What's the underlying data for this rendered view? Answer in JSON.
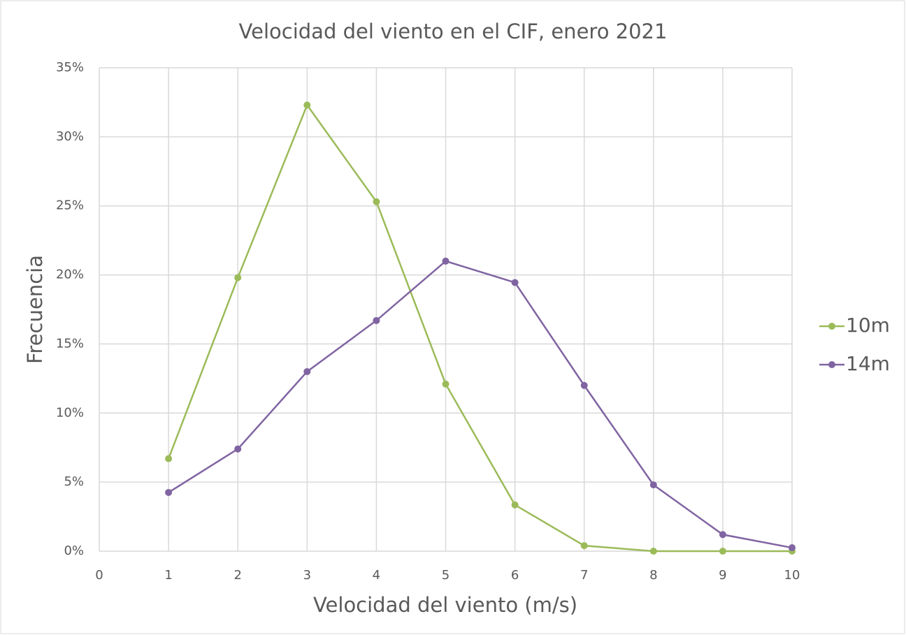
{
  "chart_data": {
    "type": "line",
    "title": "Velocidad del viento en el CIF, enero 2021",
    "x_label": "Velocidad del viento (m/s)",
    "y_label": "Frecuencia",
    "x": [
      1,
      2,
      3,
      4,
      5,
      6,
      7,
      8,
      9,
      10
    ],
    "series": [
      {
        "name": "10m",
        "color": "#9bbb59",
        "values": [
          6.7,
          19.8,
          32.3,
          25.3,
          12.1,
          3.35,
          0.4,
          0,
          0,
          0
        ]
      },
      {
        "name": "14m",
        "color": "#8064a2",
        "values": [
          4.25,
          7.4,
          13.0,
          16.7,
          21.0,
          19.45,
          12.0,
          4.8,
          1.2,
          0.25
        ]
      }
    ],
    "xlim": [
      0,
      10
    ],
    "xticks": [
      0,
      1,
      2,
      3,
      4,
      5,
      6,
      7,
      8,
      9,
      10
    ],
    "ylim": [
      0,
      35
    ],
    "yticks": [
      {
        "value": 0,
        "label": "0%"
      },
      {
        "value": 5,
        "label": "5%"
      },
      {
        "value": 10,
        "label": "10%"
      },
      {
        "value": 15,
        "label": "15%"
      },
      {
        "value": 20,
        "label": "20%"
      },
      {
        "value": 25,
        "label": "25%"
      },
      {
        "value": 30,
        "label": "30%"
      },
      {
        "value": 35,
        "label": "35%"
      }
    ],
    "grid": true,
    "legend": "right"
  }
}
